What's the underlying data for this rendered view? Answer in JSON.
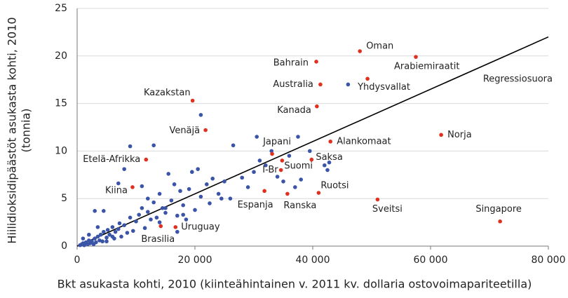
{
  "chart_data": {
    "type": "scatter",
    "x_label": "Bkt asukasta kohti, 2010 (kiinteähintainen v. 2011 kv. dollaria ostovoimapariteetilla)",
    "y_label": [
      "Hiilidioksidipäästöt asukasta kohti, 2010",
      "(tonnia)"
    ],
    "xlim": [
      0,
      80000
    ],
    "ylim": [
      0,
      25
    ],
    "xticks": [
      0,
      {
        "value": 20000,
        "label": "20 000"
      },
      {
        "value": 40000,
        "label": "40 000"
      },
      {
        "value": 60000,
        "label": "60 000"
      },
      {
        "value": 80000,
        "label": "80 000"
      }
    ],
    "yticks": [
      0,
      5,
      10,
      15,
      20,
      25
    ],
    "grid": true,
    "regression": {
      "label": "Regressiosuora",
      "color": "#000000",
      "x": [
        0,
        80000
      ],
      "values": [
        0,
        22
      ]
    },
    "series": [
      {
        "color": "#3a55a8",
        "x": [
          500,
          800,
          1000,
          1200,
          1500,
          1800,
          2000,
          2200,
          2500,
          2800,
          3000,
          3200,
          3500,
          3800,
          4000,
          4300,
          4500,
          5000,
          5200,
          5500,
          6000,
          6300,
          6500,
          7000,
          7200,
          7500,
          8000,
          8500,
          9000,
          9500,
          10000,
          10500,
          11000,
          11500,
          12000,
          12500,
          13000,
          13500,
          14000,
          14500,
          15000,
          15500,
          16000,
          16500,
          17000,
          17500,
          18000,
          18500,
          19000,
          19500,
          20000,
          20500,
          21000,
          21000,
          22000,
          22500,
          23000,
          24000,
          25000,
          26000,
          26500,
          28000,
          29000,
          30000,
          30500,
          31000,
          32000,
          33000,
          34000,
          35000,
          36000,
          37000,
          37500,
          38000,
          39500,
          42000,
          42500,
          42800,
          46000,
          3000,
          4500,
          7000,
          8000,
          9000,
          13000,
          11000,
          12000,
          3500,
          2000,
          5000,
          1000,
          6000,
          18000,
          17000,
          24500,
          15000,
          14000
        ],
        "values": [
          0.1,
          0.2,
          0.3,
          0.1,
          0.4,
          0.2,
          0.6,
          0.3,
          0.5,
          0.2,
          0.8,
          0.4,
          1.0,
          0.6,
          1.2,
          0.5,
          1.5,
          0.9,
          1.7,
          1.2,
          2.0,
          0.8,
          1.5,
          1.8,
          2.4,
          1.0,
          2.2,
          1.4,
          3.0,
          1.6,
          2.6,
          3.3,
          4.0,
          1.9,
          3.6,
          2.8,
          4.6,
          3.0,
          5.5,
          4.0,
          3.5,
          7.6,
          4.8,
          6.5,
          3.2,
          5.8,
          4.3,
          2.8,
          6.0,
          7.8,
          3.8,
          8.1,
          13.8,
          5.2,
          6.5,
          4.5,
          7.1,
          5.5,
          6.8,
          5.0,
          10.6,
          7.2,
          6.2,
          7.8,
          11.5,
          9.0,
          8.5,
          10.0,
          7.3,
          6.8,
          9.5,
          6.2,
          11.5,
          7.0,
          10.0,
          8.5,
          8.0,
          8.8,
          17.0,
          3.7,
          3.7,
          6.6,
          8.1,
          10.5,
          10.6,
          6.3,
          5.0,
          2.0,
          1.2,
          0.5,
          0.8,
          1.0,
          3.3,
          1.5,
          5.0,
          4.0,
          2.5
        ]
      },
      {
        "color": "#e03020",
        "labels": [
          "Oman",
          "Arabiemiraatit",
          "Bahrain",
          "Australia",
          "Yhdysvallat",
          "Kazakstan",
          "Kanada",
          "Venäjä",
          "Norja",
          "Alankomaat",
          "Japani",
          "Etelä-Afrikka",
          "Saksa",
          "Suomi",
          "I-Br",
          "Kiina",
          "Ruotsi",
          "Espanja",
          "Ranska",
          "Sveitsi",
          "Singapore",
          "Uruguay",
          "Brasilia"
        ],
        "x": [
          48000,
          57500,
          40600,
          41300,
          49300,
          19600,
          40700,
          21800,
          61800,
          43000,
          33100,
          11700,
          39800,
          34800,
          34600,
          9400,
          41000,
          31800,
          35700,
          51000,
          71800,
          16700,
          14200
        ],
        "values": [
          20.5,
          19.9,
          19.4,
          17.0,
          17.6,
          15.3,
          14.7,
          12.2,
          11.7,
          11.0,
          9.7,
          9.1,
          9.1,
          9.0,
          8.0,
          6.2,
          5.6,
          5.8,
          5.5,
          4.9,
          2.6,
          2.0,
          2.1
        ]
      }
    ]
  }
}
